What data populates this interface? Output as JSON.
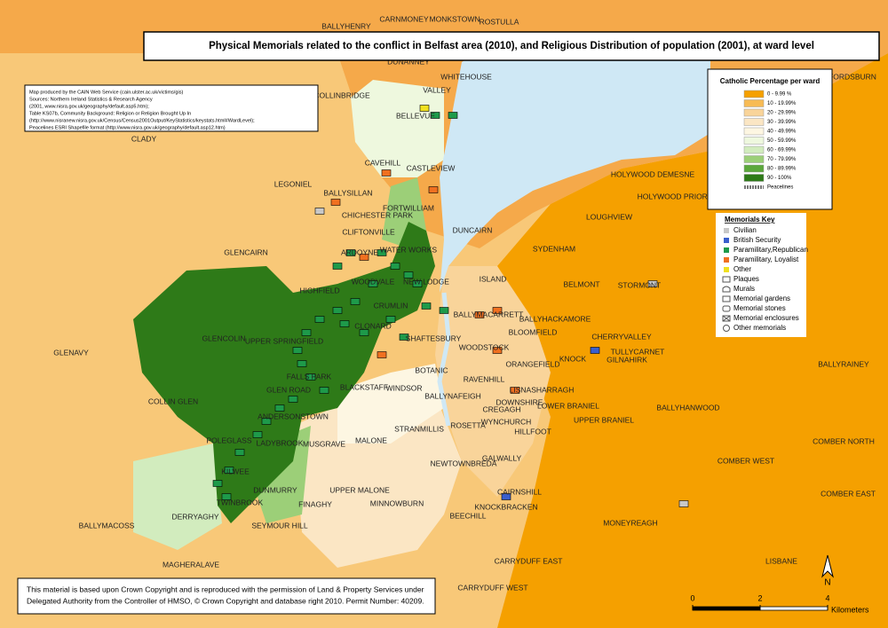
{
  "header": {
    "title": "Physical Memorials related to the conflict in Belfast area (2010), and Religious Distribution of population (2001), at ward level"
  },
  "credits": [
    "Map produced by the CAIN Web Service (cain.ulster.ac.uk/victims/gis)",
    "Sources: Northern Ireland Statistics & Research Agency",
    "(2001, www.nisra.gov.uk/geography/default.asp5.htm);",
    "Table KS07b, Community Background: Religion or Religion Brought Up In",
    "(http://www.nisranew.nisra.gov.uk/Census/Census2001Output/KeyStatistics/keystats.html#WardLevel);",
    "Peacelines ESRI Shapefile format (http://www.nisra.gov.uk/geography/default.asp12.htm)"
  ],
  "legend": {
    "title": "Catholic Percentage per ward",
    "items": [
      {
        "label": "0 - 9.99 %",
        "color": "#f5a000"
      },
      {
        "label": "10 - 19.99%",
        "color": "#f7bb55"
      },
      {
        "label": "20 - 29.99%",
        "color": "#f9d49a"
      },
      {
        "label": "30 - 39.99%",
        "color": "#fbe6c4"
      },
      {
        "label": "40 - 49.99%",
        "color": "#fdf6e2"
      },
      {
        "label": "50 - 59.99%",
        "color": "#eef8de"
      },
      {
        "label": "60 - 69.99%",
        "color": "#d2ecbe"
      },
      {
        "label": "70 - 79.99%",
        "color": "#9ccf78"
      },
      {
        "label": "80 - 89.99%",
        "color": "#5ca83c"
      },
      {
        "label": "90 - 100%",
        "color": "#2e7a18"
      }
    ],
    "peacelines": "Peacelines"
  },
  "memorials_key": {
    "title": "Memorials Key",
    "items": [
      {
        "label": "Civilian",
        "color": "#c8c8c8",
        "symbol": "square"
      },
      {
        "label": "British Security",
        "color": "#3a5fcd",
        "symbol": "square"
      },
      {
        "label": "Paramilitary,Republican",
        "color": "#1e9a4a",
        "symbol": "square"
      },
      {
        "label": "Paramilitary, Loyalist",
        "color": "#f07020",
        "symbol": "square"
      },
      {
        "label": "Other",
        "color": "#f0e020",
        "symbol": "square"
      },
      {
        "label": "Plaques",
        "color": "#555555",
        "symbol": "plaque"
      },
      {
        "label": "Murals",
        "color": "#555555",
        "symbol": "mural"
      },
      {
        "label": "Memorial gardens",
        "color": "#555555",
        "symbol": "garden"
      },
      {
        "label": "Memorial stones",
        "color": "#555555",
        "symbol": "stone"
      },
      {
        "label": "Memorial enclosures",
        "color": "#555555",
        "symbol": "enclosure"
      },
      {
        "label": "Other memorials",
        "color": "#555555",
        "symbol": "circle"
      }
    ]
  },
  "copyright": [
    "This material is based upon Crown Copyright and is reproduced with the permission of Land & Property Services under",
    "Delegated Authority from the Controller of HMSO, © Crown Copyright and database right 2010. Permit Number: 40209."
  ],
  "scale": {
    "ticks": [
      0,
      2,
      4
    ],
    "unit": "Kilometers"
  },
  "north": "N",
  "wards": [
    "BALLYHENRY",
    "CARNMONEY",
    "MONKSTOWN",
    "ROSTULLA",
    "COLLINBRIDGE",
    "VALLEY",
    "WHITEHOUSE",
    "BELLEVUE",
    "CLADY",
    "CAVEHILL",
    "CASTLEVIEW",
    "LEGONIEL",
    "BALLYSILLAN",
    "FORTWILLIAM",
    "CHICHESTER PARK",
    "CLIFTONVILLE",
    "DUNCAIRN",
    "GLENCAIRN",
    "SYDENHAM",
    "LOUGHVIEW",
    "HOLYWOOD DEMESNE",
    "HOLYWOOD PRIORY",
    "FORDSBURN",
    "HIGHFIELD",
    "ISLAND",
    "BELMONT",
    "STORMONT",
    "BALLYHACKAMORE",
    "GLENCOLIN",
    "UPPER SPRINGFIELD",
    "GLENAVY",
    "SHAFTESBURY",
    "WOODSTOCK",
    "BLOOMFIELD",
    "CHERRYVALLEY",
    "KNOCK",
    "ORANGEFIELD",
    "GILNAHIRK",
    "TULLYCARNET",
    "BALLYRAINEY",
    "BOTANIC",
    "FALLS PARK",
    "RAVENHILL",
    "BLACKSTAFF",
    "WINDSOR",
    "GLEN ROAD",
    "LISNASHARRAGH",
    "COLLIN GLEN",
    "BALLYNAFEIGH",
    "DOWNSHIRE",
    "LOWER BRANIEL",
    "BALLYHANWOOD",
    "CREGAGH",
    "UPPER BRANIEL",
    "WYNCHURCH",
    "ROSETTA",
    "HILLFOOT",
    "STRANMILLIS",
    "ANDERSONSTOWN",
    "POLEGLASS",
    "LADYBROOK",
    "MUSGRAVE",
    "MALONE",
    "COMBER NORTH",
    "GALWALLY",
    "NEWTOWNBREDA",
    "KILWEE",
    "COMBER WEST",
    "DUNMURRY",
    "CAIRNSHILL",
    "COMBER EAST",
    "UPPER MALONE",
    "TWINBROOK",
    "FINAGHY",
    "MINNOWBURN",
    "KNOCKBRACKEN",
    "DERRYAGHY",
    "BEECHILL",
    "MONEYREAGH",
    "BALLYMACOSS",
    "SEYMOUR HILL",
    "CARRYDUFF EAST",
    "LISBANE",
    "MAGHERALAVE",
    "CARRYDUFF WEST",
    "WOODVALE",
    "CRUMLIN",
    "ARDOYNE",
    "WATER WORKS",
    "NEW LODGE",
    "BALLYMACARRETT",
    "CLONARD",
    "DUNANNEY"
  ]
}
